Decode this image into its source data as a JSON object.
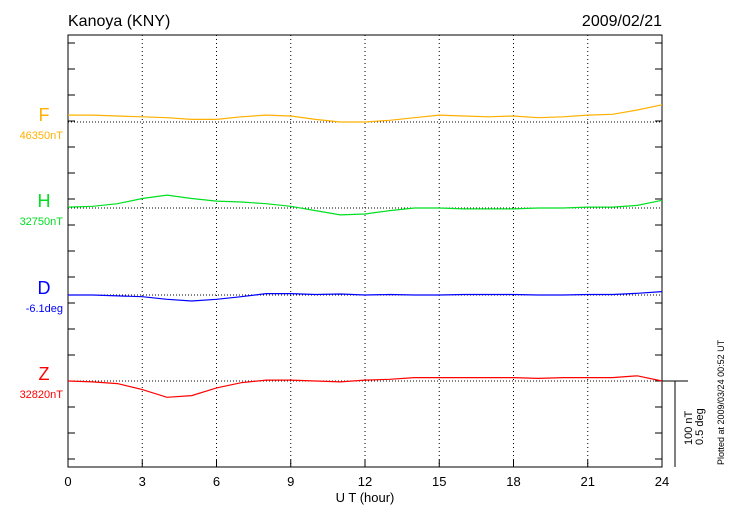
{
  "chart_data": {
    "type": "line",
    "title": "Kanoya (KNY)",
    "date": "2009/02/21",
    "xlabel": "U T (hour)",
    "xlim": [
      0,
      24
    ],
    "xticks": [
      "0",
      "3",
      "6",
      "9",
      "12",
      "15",
      "18",
      "21",
      "24"
    ],
    "grid": "vertical dotted every 3 hours",
    "scale_label_1": "100 nT",
    "scale_label_2": "0.5 deg",
    "footer": "Plotted at 2009/03/24 00:52 UT",
    "x": [
      0,
      1,
      2,
      3,
      4,
      5,
      6,
      7,
      8,
      9,
      10,
      11,
      12,
      13,
      14,
      15,
      16,
      17,
      18,
      19,
      20,
      21,
      22,
      23,
      24
    ],
    "series": [
      {
        "name": "F",
        "baseline_label": "46350nT",
        "color": "#ffb000",
        "unit": "nT",
        "values": [
          8,
          8,
          7,
          6,
          5,
          3,
          3,
          6,
          8,
          7,
          3,
          0,
          0,
          2,
          5,
          8,
          7,
          6,
          7,
          5,
          6,
          8,
          9,
          14,
          20
        ]
      },
      {
        "name": "H",
        "baseline_label": "32750nT",
        "color": "#00e020",
        "unit": "nT",
        "values": [
          1,
          2,
          5,
          11,
          15,
          11,
          8,
          7,
          5,
          2,
          -3,
          -8,
          -7,
          -3,
          0,
          0,
          -1,
          -1,
          -1,
          0,
          0,
          1,
          1,
          3,
          9
        ]
      },
      {
        "name": "D",
        "baseline_label": "-6.1deg",
        "color": "#0000ff",
        "unit": "deg",
        "values": [
          0,
          0,
          -0.005,
          -0.01,
          -0.025,
          -0.035,
          -0.025,
          -0.01,
          0.008,
          0.008,
          0.003,
          0.006,
          0,
          0.003,
          0,
          0,
          0.003,
          0.003,
          0.003,
          0,
          0,
          0.003,
          0.003,
          0.01,
          0.02
        ]
      },
      {
        "name": "Z",
        "baseline_label": "32820nT",
        "color": "#ff0000",
        "unit": "nT",
        "values": [
          0,
          -1,
          -3,
          -10,
          -19,
          -17,
          -8,
          -2,
          1,
          1,
          0,
          -1,
          1,
          2,
          4,
          4,
          4,
          4,
          4,
          3,
          4,
          4,
          4,
          6,
          0
        ]
      }
    ]
  }
}
